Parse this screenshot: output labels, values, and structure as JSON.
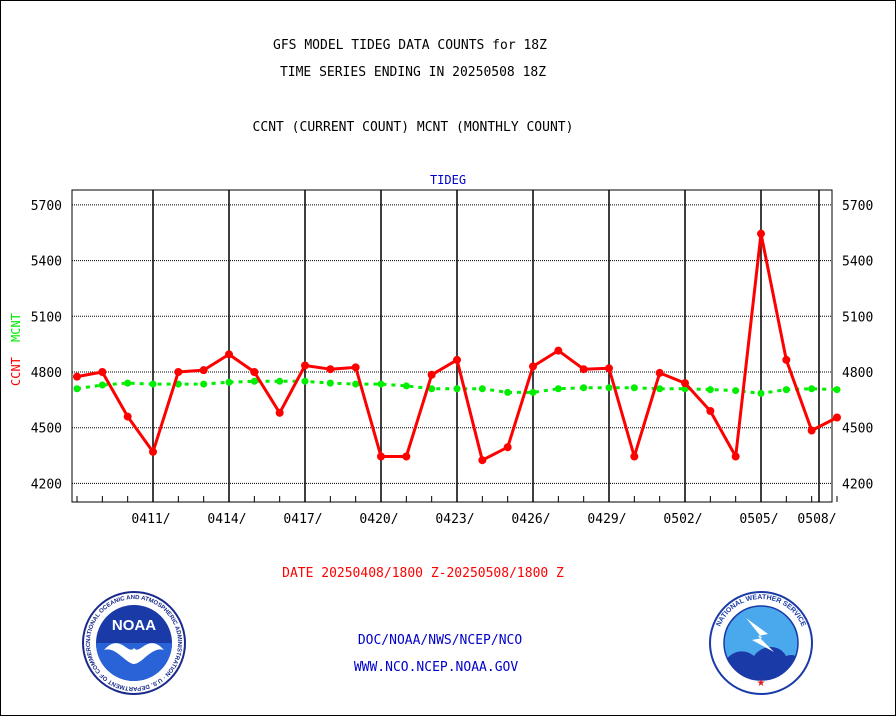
{
  "header": {
    "title_line1": "GFS MODEL TIDEG DATA COUNTS for 18Z",
    "title_line2": "TIME SERIES ENDING IN 20250508 18Z",
    "subtitle": "CCNT (CURRENT COUNT) MCNT (MONTHLY COUNT)"
  },
  "footer": {
    "date_range": "DATE 20250408/1800 Z-20250508/1800 Z",
    "org_line": "DOC/NOAA/NWS/NCEP/NCO",
    "website": "WWW.NCO.NCEP.NOAA.GOV"
  },
  "logos": {
    "noaa_label": "NOAA",
    "noaa_ring_text": "NATIONAL OCEANIC AND ATMOSPHERIC ADMINISTRATION · U.S. DEPARTMENT OF COMMERCE",
    "nws_ring_text": "NATIONAL WEATHER SERVICE"
  },
  "colors": {
    "ccnt": "#ff0000",
    "mcnt": "#00ee00",
    "panel_label": "#0000cc",
    "footer_blue": "#0000cc",
    "date_red": "#ff0000"
  },
  "chart_data": {
    "type": "line",
    "panel_label": "TIDEG",
    "ylabel_ccnt": "CCNT",
    "ylabel_mcnt": "MCNT",
    "ylim": [
      4100,
      5780
    ],
    "yticks": [
      4200,
      4500,
      4800,
      5100,
      5400,
      5700
    ],
    "xlim": [
      0,
      30
    ],
    "xticks": [
      {
        "pos": 3,
        "label": "0411/"
      },
      {
        "pos": 6,
        "label": "0414/"
      },
      {
        "pos": 9,
        "label": "0417/"
      },
      {
        "pos": 12,
        "label": "0420/"
      },
      {
        "pos": 15,
        "label": "0423/"
      },
      {
        "pos": 18,
        "label": "0426/"
      },
      {
        "pos": 21,
        "label": "0429/"
      },
      {
        "pos": 24,
        "label": "0502/"
      },
      {
        "pos": 27,
        "label": "0505/"
      },
      {
        "pos": 30,
        "label": "0508/"
      }
    ],
    "grid": true,
    "series": [
      {
        "name": "CCNT",
        "x": [
          0,
          1,
          2,
          3,
          4,
          5,
          6,
          7,
          8,
          9,
          10,
          11,
          12,
          13,
          14,
          15,
          16,
          17,
          18,
          19,
          20,
          21,
          22,
          23,
          24,
          25,
          26,
          27,
          28,
          29,
          30
        ],
        "values": [
          4775,
          4800,
          4560,
          4370,
          4800,
          4810,
          4895,
          4800,
          4580,
          4835,
          4815,
          4825,
          4345,
          4345,
          4785,
          4865,
          4325,
          4395,
          4830,
          4915,
          4815,
          4820,
          4345,
          4795,
          4740,
          4590,
          4345,
          5545,
          4865,
          4485,
          4555
        ]
      },
      {
        "name": "MCNT",
        "x": [
          0,
          1,
          2,
          3,
          4,
          5,
          6,
          7,
          8,
          9,
          10,
          11,
          12,
          13,
          14,
          15,
          16,
          17,
          18,
          19,
          20,
          21,
          22,
          23,
          24,
          25,
          26,
          27,
          28,
          29,
          30
        ],
        "values": [
          4710,
          4730,
          4740,
          4735,
          4735,
          4735,
          4745,
          4750,
          4750,
          4750,
          4740,
          4735,
          4735,
          4725,
          4710,
          4710,
          4710,
          4690,
          4690,
          4710,
          4715,
          4715,
          4715,
          4710,
          4710,
          4705,
          4700,
          4685,
          4705,
          4710,
          4705
        ]
      }
    ]
  }
}
